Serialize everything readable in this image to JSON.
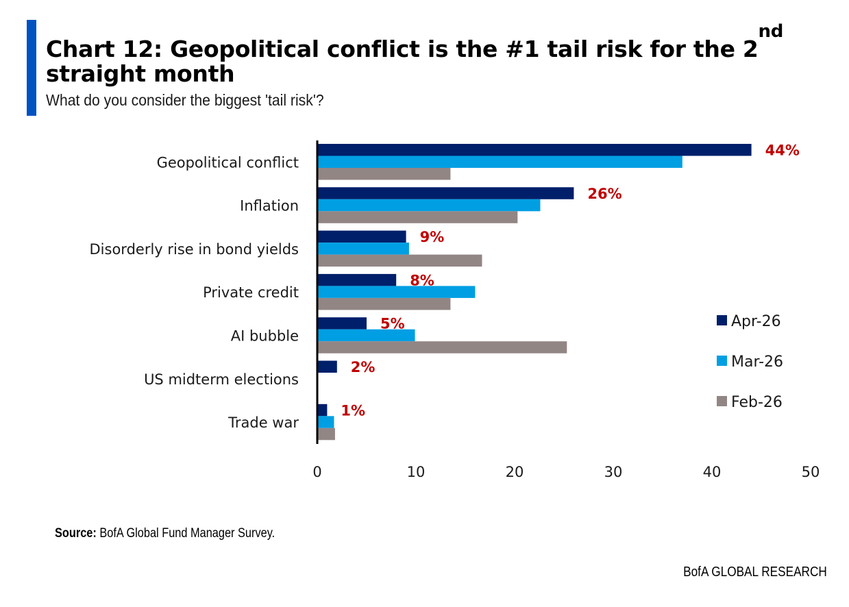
{
  "header": {
    "title_main": "Chart 12: Geopolitical conflict is the #1 tail risk for the 2",
    "title_sup": "nd",
    "title_line2": "straight month",
    "subtitle": "What do you consider the biggest 'tail risk'?"
  },
  "footer": {
    "source_label": "Source:",
    "source_text": " BofA Global Fund Manager Survey.",
    "brand": "BofA GLOBAL RESEARCH"
  },
  "chart_data": {
    "type": "bar",
    "orientation": "horizontal",
    "title": "Chart 12: Geopolitical conflict is the #1 tail risk for the 2nd straight month",
    "subtitle": "What do you consider the biggest 'tail risk'?",
    "xlabel": "",
    "ylabel": "",
    "xlim": [
      0,
      50
    ],
    "xticks": [
      0,
      10,
      20,
      30,
      40,
      50
    ],
    "grid": false,
    "legend_position": "right",
    "categories": [
      "Geopolitical conflict",
      "Inflation",
      "Disorderly rise in bond yields",
      "Private credit",
      "AI bubble",
      "US midterm elections",
      "Trade war"
    ],
    "series": [
      {
        "name": "Apr-26",
        "color": "#001f6b",
        "values": [
          44,
          26,
          9,
          8,
          5,
          2,
          1
        ]
      },
      {
        "name": "Mar-26",
        "color": "#009fe3",
        "values": [
          37,
          22.6,
          9.3,
          16,
          9.9,
          0,
          1.7
        ]
      },
      {
        "name": "Feb-26",
        "color": "#928685",
        "values": [
          13.5,
          20.3,
          16.7,
          13.5,
          25.3,
          0,
          1.8
        ]
      }
    ],
    "data_labels": [
      "44%",
      "26%",
      "9%",
      "8%",
      "5%",
      "2%",
      "1%"
    ],
    "data_label_color": "#c00000"
  }
}
